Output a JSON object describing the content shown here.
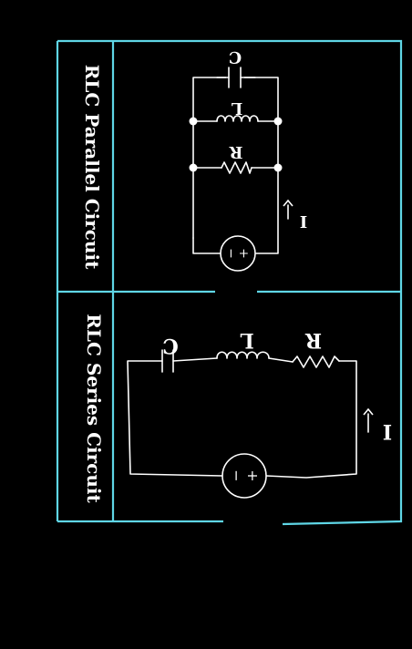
{
  "diagram": {
    "colors": {
      "frame": "#5fd6e6",
      "wire": "#ffffff",
      "background": "#000000"
    },
    "panels": [
      {
        "id": "parallel",
        "title": "RLC Parallel Circuit",
        "components": {
          "resistor": "R",
          "inductor": "L",
          "capacitor": "C",
          "current": "I"
        }
      },
      {
        "id": "series",
        "title": "RLC Series Circuit",
        "components": {
          "resistor": "R",
          "inductor": "L",
          "capacitor": "C",
          "current": "I"
        }
      }
    ]
  }
}
